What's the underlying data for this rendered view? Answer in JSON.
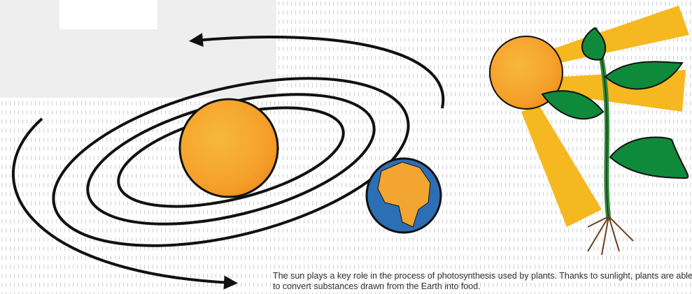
{
  "caption": "The sun plays a key role in the process of photosynthesis used by plants. Thanks to sunlight, plants are able to convert substances drawn from the Earth into food."
}
